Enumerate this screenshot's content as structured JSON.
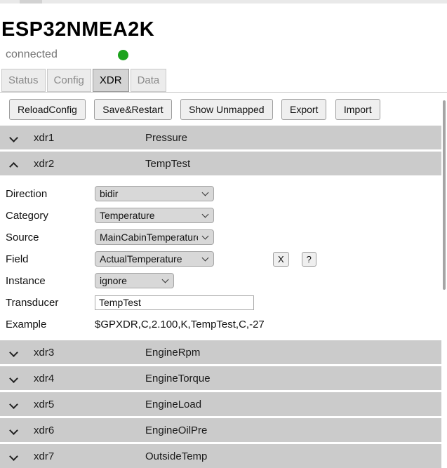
{
  "page": {
    "title": "ESP32NMEA2K",
    "status": {
      "label": "connected",
      "indicator_color": "#1ca21c"
    }
  },
  "tabs": [
    {
      "label": "Status",
      "active": false
    },
    {
      "label": "Config",
      "active": false
    },
    {
      "label": "XDR",
      "active": true
    },
    {
      "label": "Data",
      "active": false
    }
  ],
  "toolbar": {
    "reload_label": "ReloadConfig",
    "save_label": "Save&Restart",
    "unmapped_label": "Show Unmapped",
    "export_label": "Export",
    "import_label": "Import"
  },
  "xdr": {
    "rows": [
      {
        "key": "xdr1",
        "name": "Pressure",
        "expanded": false
      },
      {
        "key": "xdr2",
        "name": "TempTest",
        "expanded": true
      },
      {
        "key": "xdr3",
        "name": "EngineRpm",
        "expanded": false
      },
      {
        "key": "xdr4",
        "name": "EngineTorque",
        "expanded": false
      },
      {
        "key": "xdr5",
        "name": "EngineLoad",
        "expanded": false
      },
      {
        "key": "xdr6",
        "name": "EngineOilPre",
        "expanded": false
      },
      {
        "key": "xdr7",
        "name": "OutsideTemp",
        "expanded": false
      }
    ],
    "form": {
      "direction": {
        "label": "Direction",
        "value": "bidir"
      },
      "category": {
        "label": "Category",
        "value": "Temperature"
      },
      "source": {
        "label": "Source",
        "value": "MainCabinTemperature"
      },
      "field": {
        "label": "Field",
        "value": "ActualTemperature",
        "clear_button": "X",
        "help_button": "?"
      },
      "instance": {
        "label": "Instance",
        "value": "ignore"
      },
      "transducer": {
        "label": "Transducer",
        "value": "TempTest"
      },
      "example": {
        "label": "Example",
        "value": "$GPXDR,C,2.100,K,TempTest,C,-27"
      }
    }
  },
  "colors": {
    "accent_green": "#1ca21c",
    "row_bg": "#cbcbcb",
    "tab_active_bg": "#d4d4d4",
    "control_bg": "#d8d8d8"
  }
}
